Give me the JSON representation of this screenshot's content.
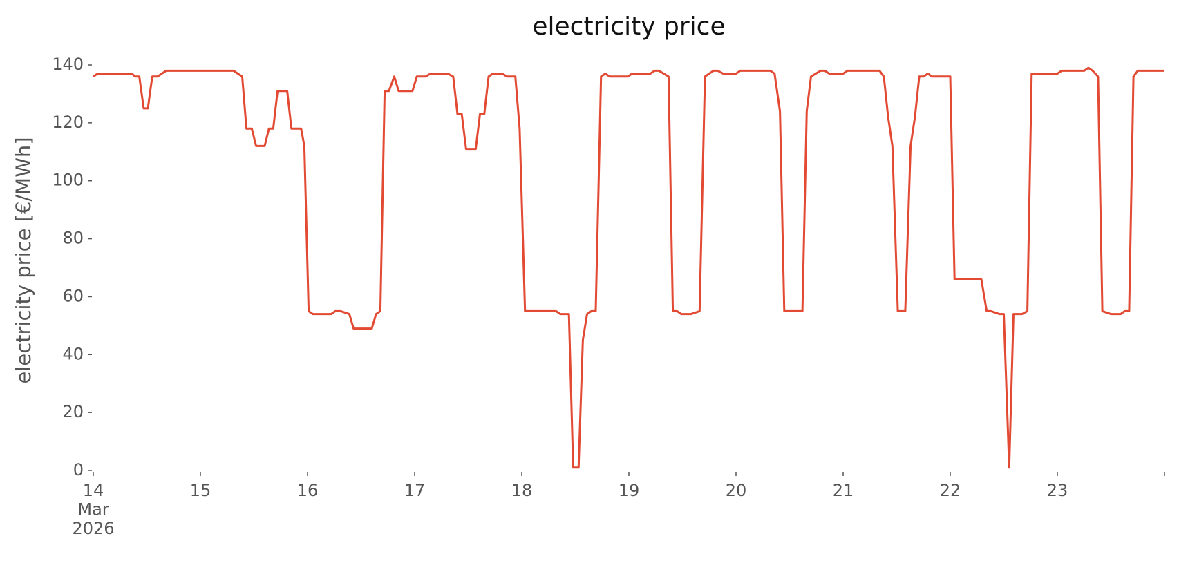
{
  "chart_data": {
    "type": "line",
    "title": "electricity price",
    "ylabel": "electricity price [€/MWh]",
    "color": "#E24A33",
    "x": [
      14.0,
      14.04,
      14.36,
      14.39,
      14.43,
      14.47,
      14.51,
      14.55,
      14.6,
      14.68,
      15.31,
      15.35,
      15.39,
      15.43,
      15.48,
      15.52,
      15.6,
      15.64,
      15.68,
      15.72,
      15.81,
      15.85,
      15.94,
      15.97,
      16.01,
      16.05,
      16.22,
      16.26,
      16.31,
      16.39,
      16.43,
      16.6,
      16.64,
      16.68,
      16.72,
      16.76,
      16.81,
      16.85,
      16.98,
      17.02,
      17.1,
      17.15,
      17.31,
      17.36,
      17.4,
      17.44,
      17.48,
      17.57,
      17.61,
      17.65,
      17.69,
      17.73,
      17.82,
      17.86,
      17.94,
      17.98,
      18.03,
      18.32,
      18.36,
      18.44,
      18.48,
      18.53,
      18.57,
      18.61,
      18.65,
      18.69,
      18.74,
      18.78,
      18.82,
      18.99,
      19.03,
      19.2,
      19.24,
      19.28,
      19.37,
      19.41,
      19.45,
      19.49,
      19.58,
      19.66,
      19.71,
      19.79,
      19.83,
      19.88,
      20.0,
      20.04,
      20.32,
      20.36,
      20.41,
      20.45,
      20.49,
      20.57,
      20.62,
      20.66,
      20.7,
      20.79,
      20.83,
      20.87,
      21.0,
      21.04,
      21.34,
      21.38,
      21.42,
      21.46,
      21.51,
      21.58,
      21.63,
      21.67,
      21.71,
      21.75,
      21.79,
      21.83,
      22.0,
      22.04,
      22.29,
      22.34,
      22.38,
      22.46,
      22.5,
      22.55,
      22.59,
      22.67,
      22.72,
      22.76,
      23.0,
      23.04,
      23.25,
      23.29,
      23.33,
      23.38,
      23.42,
      23.5,
      23.59,
      23.63,
      23.67,
      23.71,
      23.75,
      24.0
    ],
    "values": [
      136,
      137,
      137,
      136,
      136,
      125,
      125,
      136,
      136,
      138,
      138,
      137,
      136,
      118,
      118,
      112,
      112,
      118,
      118,
      131,
      131,
      118,
      118,
      112,
      55,
      54,
      54,
      55,
      55,
      54,
      49,
      49,
      54,
      55,
      131,
      131,
      136,
      131,
      131,
      136,
      136,
      137,
      137,
      136,
      123,
      123,
      111,
      111,
      123,
      123,
      136,
      137,
      137,
      136,
      136,
      118,
      55,
      55,
      54,
      54,
      1,
      1,
      45,
      54,
      55,
      55,
      136,
      137,
      136,
      136,
      137,
      137,
      138,
      138,
      136,
      55,
      55,
      54,
      54,
      55,
      136,
      138,
      138,
      137,
      137,
      138,
      138,
      137,
      124,
      55,
      55,
      55,
      55,
      124,
      136,
      138,
      138,
      137,
      137,
      138,
      138,
      136,
      122,
      112,
      55,
      55,
      112,
      122,
      136,
      136,
      137,
      136,
      136,
      66,
      66,
      55,
      55,
      54,
      54,
      1,
      54,
      54,
      55,
      137,
      137,
      138,
      138,
      139,
      138,
      136,
      55,
      54,
      54,
      55,
      55,
      136,
      138,
      138
    ],
    "xlim": [
      14,
      24
    ],
    "xticks": [
      {
        "value": 14,
        "label": "14\nMar\n2026"
      },
      15,
      16,
      17,
      18,
      19,
      20,
      21,
      22,
      23,
      {
        "value": 24,
        "label": null
      }
    ],
    "ylim": [
      0,
      140
    ],
    "yticks": [
      0,
      20,
      40,
      60,
      80,
      100,
      120,
      140
    ]
  }
}
